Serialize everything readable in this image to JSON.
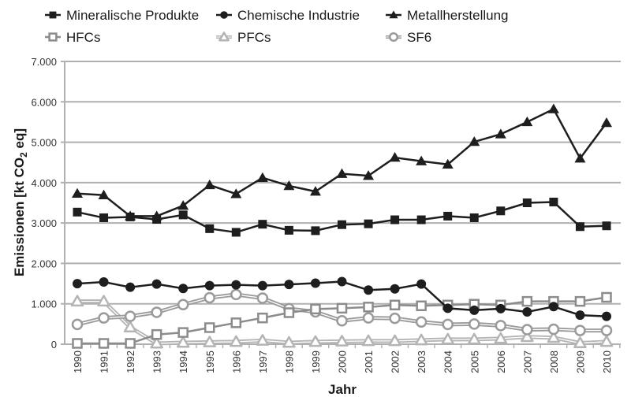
{
  "chart_data": {
    "type": "line",
    "title": "",
    "xlabel": "Jahr",
    "ylabel": "Emissionen [kt CO2 eq]",
    "ylabel_parts": {
      "before": "Emissionen [kt CO",
      "sub": "2",
      "after": " eq]"
    },
    "ylim": [
      0,
      7000
    ],
    "yticks": [
      0,
      1000,
      2000,
      3000,
      4000,
      5000,
      6000,
      7000
    ],
    "ytick_labels": [
      "0",
      "1.000",
      "2.000",
      "3.000",
      "4.000",
      "5.000",
      "6.000",
      "7.000"
    ],
    "x": [
      "1990",
      "1991",
      "1992",
      "1993",
      "1994",
      "1995",
      "1996",
      "1997",
      "1998",
      "1999",
      "2000",
      "2001",
      "2002",
      "2003",
      "2004",
      "2005",
      "2006",
      "2007",
      "2008",
      "2009",
      "2010"
    ],
    "grid": true,
    "legend_position": "top",
    "series": [
      {
        "name": "Mineralische Produkte",
        "marker": "square",
        "style": "solid-dark",
        "color": "#1e1e1e",
        "values": [
          3270,
          3130,
          3150,
          3090,
          3200,
          2860,
          2770,
          2970,
          2820,
          2810,
          2960,
          2980,
          3080,
          3080,
          3170,
          3130,
          3300,
          3500,
          3520,
          2910,
          2930
        ]
      },
      {
        "name": "Chemische Industrie",
        "marker": "circle",
        "style": "solid-dark",
        "color": "#1e1e1e",
        "values": [
          1500,
          1540,
          1410,
          1490,
          1380,
          1450,
          1470,
          1450,
          1480,
          1510,
          1550,
          1340,
          1370,
          1490,
          890,
          840,
          880,
          800,
          930,
          720,
          690
        ]
      },
      {
        "name": "Metallherstellung",
        "marker": "triangle",
        "style": "solid-dark",
        "color": "#1e1e1e",
        "values": [
          3730,
          3690,
          3170,
          3170,
          3430,
          3940,
          3720,
          4120,
          3920,
          3780,
          4220,
          4170,
          4620,
          4530,
          4450,
          5010,
          5200,
          5500,
          5820,
          4600,
          5480
        ]
      },
      {
        "name": "HFCs",
        "marker": "square-open",
        "style": "solid-mid",
        "color": "#8c8c8c",
        "values": [
          20,
          20,
          20,
          240,
          290,
          410,
          530,
          650,
          780,
          870,
          890,
          920,
          970,
          950,
          970,
          990,
          970,
          1060,
          1060,
          1060,
          1160
        ]
      },
      {
        "name": "PFCs",
        "marker": "triangle-open",
        "style": "double-light",
        "color": "#b4b4b4",
        "values": [
          1060,
          1060,
          420,
          20,
          40,
          50,
          60,
          90,
          40,
          60,
          70,
          80,
          80,
          100,
          120,
          120,
          140,
          180,
          160,
          30,
          60
        ]
      },
      {
        "name": "SF6",
        "marker": "circle-open",
        "style": "double-mid",
        "color": "#9a9a9a",
        "values": [
          490,
          650,
          690,
          790,
          980,
          1150,
          1230,
          1140,
          880,
          800,
          580,
          650,
          640,
          550,
          490,
          500,
          460,
          360,
          370,
          340,
          340
        ]
      }
    ]
  }
}
